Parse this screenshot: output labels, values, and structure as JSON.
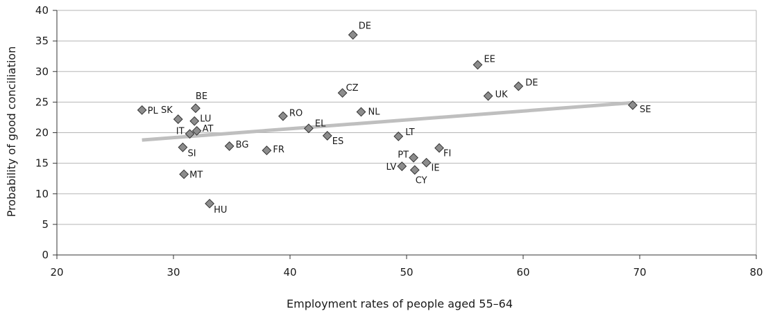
{
  "chart_data": {
    "type": "scatter",
    "xlabel": "Employment rates of people aged 55–64",
    "ylabel": "Probability of good conciliation",
    "xlim": [
      20,
      80
    ],
    "ylim": [
      0,
      40
    ],
    "xticks": [
      20,
      30,
      40,
      50,
      60,
      70,
      80
    ],
    "yticks": [
      0,
      5,
      10,
      15,
      20,
      25,
      30,
      35,
      40
    ],
    "grid": "horizontal",
    "colors": {
      "marker_fill": "#8c8c8c",
      "marker_stroke": "#333333",
      "trend": "#bfbfbf",
      "grid": "#b5b5b5"
    },
    "points": [
      {
        "label": "PL",
        "x": 27.3,
        "y": 23.7
      },
      {
        "label": "SK",
        "x": 30.4,
        "y": 22.2
      },
      {
        "label": "BE",
        "x": 31.9,
        "y": 24.0
      },
      {
        "label": "LU",
        "x": 31.8,
        "y": 21.9
      },
      {
        "label": "AT",
        "x": 32.0,
        "y": 20.3
      },
      {
        "label": "IT",
        "x": 31.4,
        "y": 19.8
      },
      {
        "label": "SI",
        "x": 30.8,
        "y": 17.6
      },
      {
        "label": "MT",
        "x": 30.9,
        "y": 13.2
      },
      {
        "label": "HU",
        "x": 33.1,
        "y": 8.4
      },
      {
        "label": "BG",
        "x": 34.8,
        "y": 17.8
      },
      {
        "label": "FR",
        "x": 38.0,
        "y": 17.1
      },
      {
        "label": "RO",
        "x": 39.4,
        "y": 22.7
      },
      {
        "label": "EL",
        "x": 41.6,
        "y": 20.7
      },
      {
        "label": "ES",
        "x": 43.2,
        "y": 19.5
      },
      {
        "label": "CZ",
        "x": 44.5,
        "y": 26.5
      },
      {
        "label": "DE",
        "x": 45.4,
        "y": 36.0
      },
      {
        "label": "NL",
        "x": 46.1,
        "y": 23.4
      },
      {
        "label": "LT",
        "x": 49.3,
        "y": 19.4
      },
      {
        "label": "LV",
        "x": 49.6,
        "y": 14.5
      },
      {
        "label": "PT",
        "x": 50.6,
        "y": 15.9
      },
      {
        "label": "CY",
        "x": 50.7,
        "y": 13.9
      },
      {
        "label": "IE",
        "x": 51.7,
        "y": 15.1
      },
      {
        "label": "FI",
        "x": 52.8,
        "y": 17.5
      },
      {
        "label": "EE",
        "x": 56.1,
        "y": 31.1
      },
      {
        "label": "UK",
        "x": 57.0,
        "y": 26.0
      },
      {
        "label": "DE",
        "x": 59.6,
        "y": 27.6
      },
      {
        "label": "SE",
        "x": 69.4,
        "y": 24.5
      }
    ],
    "trendline": {
      "x": [
        27.3,
        69.4
      ],
      "y": [
        18.8,
        24.9
      ]
    }
  }
}
